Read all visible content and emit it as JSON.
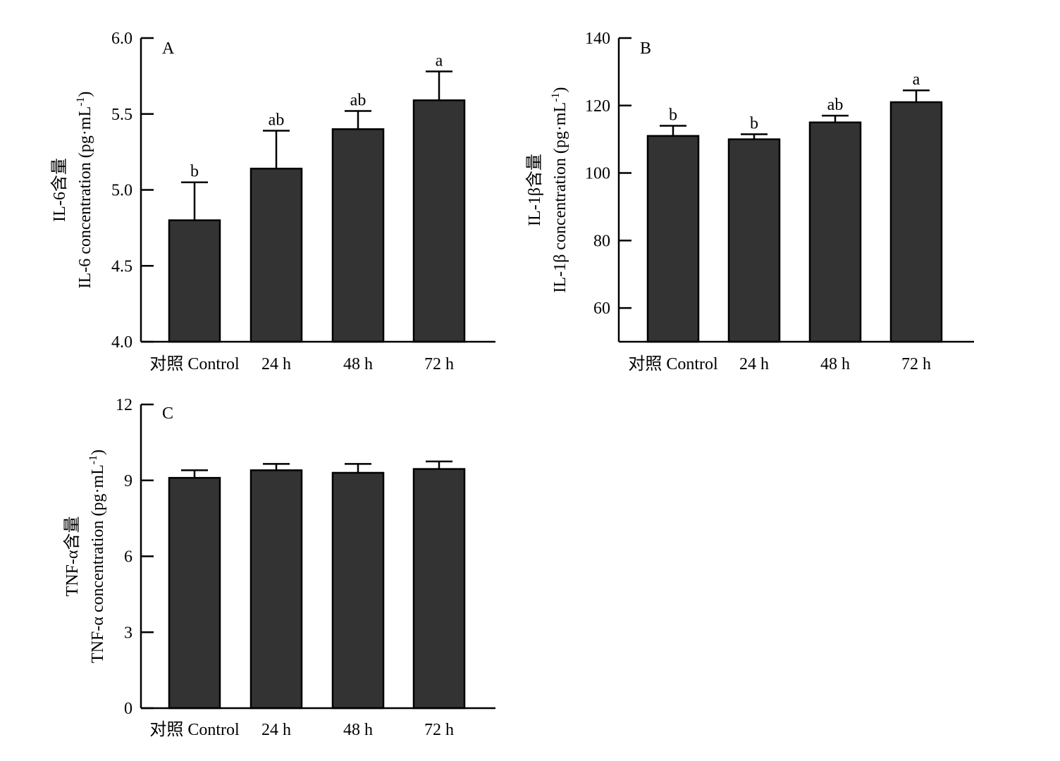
{
  "chart_data": [
    {
      "type": "bar",
      "panel": "A",
      "categories": [
        "对照 Control",
        "24 h",
        "48 h",
        "72 h"
      ],
      "values": [
        4.8,
        5.14,
        5.4,
        5.59
      ],
      "errors": [
        0.25,
        0.25,
        0.12,
        0.19
      ],
      "significance": [
        "b",
        "ab",
        "ab",
        "a"
      ],
      "ylabel_cn": "IL-6含量",
      "ylabel_en": "IL-6 concentration (pg·mL",
      "ylabel_sup": "-1",
      "ylabel_close": ")",
      "ylim": [
        4.0,
        6.0
      ],
      "yticks": [
        "4.0",
        "4.5",
        "5.0",
        "5.5",
        "6.0"
      ],
      "ytick_values": [
        4.0,
        4.5,
        5.0,
        5.5,
        6.0
      ],
      "bar_color": "#333333",
      "grid": false
    },
    {
      "type": "bar",
      "panel": "B",
      "categories": [
        "对照 Control",
        "24 h",
        "48 h",
        "72 h"
      ],
      "values": [
        111,
        110,
        115,
        121
      ],
      "errors": [
        3,
        1.5,
        2,
        3.5
      ],
      "significance": [
        "b",
        "b",
        "ab",
        "a"
      ],
      "ylabel_cn": "IL-1β含量",
      "ylabel_en": "IL-1β concentration (pg·mL",
      "ylabel_sup": "-1",
      "ylabel_close": ")",
      "ylim": [
        50,
        140
      ],
      "yticks": [
        "60",
        "80",
        "100",
        "120",
        "140"
      ],
      "ytick_values": [
        60,
        80,
        100,
        120,
        140
      ],
      "bar_color": "#333333",
      "grid": false
    },
    {
      "type": "bar",
      "panel": "C",
      "categories": [
        "对照 Control",
        "24 h",
        "48 h",
        "72 h"
      ],
      "values": [
        9.1,
        9.4,
        9.3,
        9.45
      ],
      "errors": [
        0.3,
        0.25,
        0.35,
        0.3
      ],
      "significance": [
        "",
        "",
        "",
        ""
      ],
      "ylabel_cn": "TNF-α含量",
      "ylabel_en": "TNF-α concentration (pg·mL",
      "ylabel_sup": "-1",
      "ylabel_close": ")",
      "ylim": [
        0,
        12
      ],
      "yticks": [
        "0",
        "3",
        "6",
        "9",
        "12"
      ],
      "ytick_values": [
        0,
        3,
        6,
        9,
        12
      ],
      "bar_color": "#333333",
      "grid": false
    }
  ]
}
